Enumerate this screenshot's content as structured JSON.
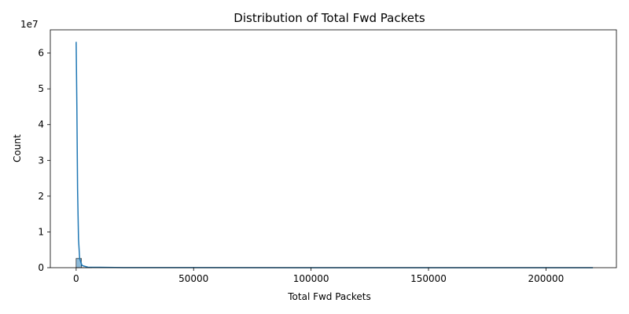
{
  "chart_data": {
    "type": "bar",
    "title": "Distribution of Total Fwd Packets",
    "xlabel": "Total Fwd Packets",
    "ylabel": "Count",
    "y_offset_label": "1e7",
    "y_scale_factor": 10000000,
    "xlim": [
      -11000,
      230000
    ],
    "ylim": [
      0,
      66500000
    ],
    "x_ticks": [
      0,
      50000,
      100000,
      150000,
      200000
    ],
    "x_tick_labels": [
      "0",
      "50000",
      "100000",
      "150000",
      "200000"
    ],
    "y_ticks": [
      0,
      10000000,
      20000000,
      30000000,
      40000000,
      50000000,
      60000000
    ],
    "y_tick_labels": [
      "0",
      "1",
      "2",
      "3",
      "4",
      "5",
      "6"
    ],
    "bar_color": "#1f77b4",
    "bar_alpha": 0.5,
    "bins": [
      {
        "x0": 0,
        "x1": 2200,
        "value": 2600000
      },
      {
        "x0": 2200,
        "x1": 4400,
        "value": 15000
      },
      {
        "x0": 4400,
        "x1": 6600,
        "value": 3000
      }
    ],
    "kde": {
      "color": "#1f77b4",
      "x": [
        -200,
        0,
        300,
        600,
        1000,
        1500,
        2500,
        5000,
        20000,
        100000,
        220000
      ],
      "y": [
        63000000,
        63000000,
        45000000,
        22000000,
        8000000,
        2500000,
        600000,
        150000,
        30000,
        5000,
        3000
      ]
    },
    "grid": false,
    "legend": "none"
  }
}
